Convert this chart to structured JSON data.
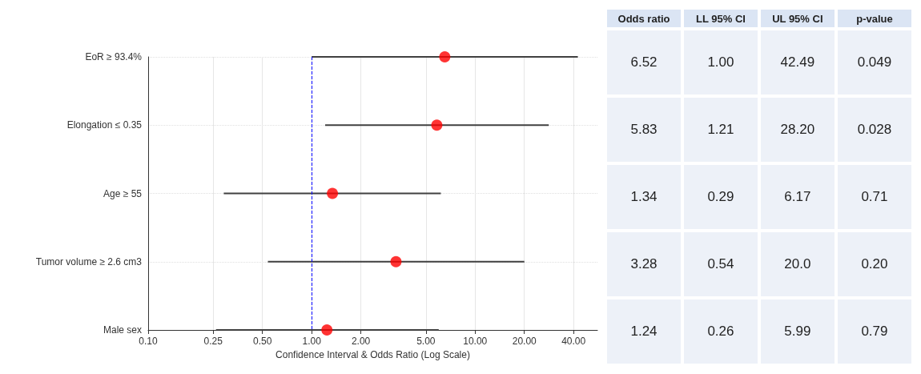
{
  "chart_data": [
    {
      "type": "scatter",
      "orientation": "horizontal",
      "xlabel": "Confidence Interval & Odds Ratio (Log Scale)",
      "categories": [
        "EoR ≥ 93.4%",
        "Elongation ≤ 0.35",
        "Age ≥ 55",
        "Tumor volume ≥ 2.6 cm3",
        "Male sex"
      ],
      "color": "#ff0000",
      "values": [
        6.52,
        5.83,
        1.34,
        3.28,
        1.24
      ],
      "errors": [
        [
          1.0,
          42.49
        ],
        [
          1.21,
          28.2
        ],
        [
          0.29,
          6.17
        ],
        [
          0.54,
          20.0
        ],
        [
          0.26,
          5.99
        ]
      ],
      "log": "x",
      "xlim": [
        0.1,
        56
      ],
      "xticks": [
        {
          "value": 0.1,
          "label": "0.10"
        },
        {
          "value": 0.25,
          "label": "0.25"
        },
        {
          "value": 0.5,
          "label": "0.50"
        },
        {
          "value": 1,
          "label": "1.00"
        },
        {
          "value": 2,
          "label": "2.00"
        },
        {
          "value": 5,
          "label": "5.00"
        },
        {
          "value": 10,
          "label": "10.00"
        },
        {
          "value": 20,
          "label": "20.00"
        },
        {
          "value": 40,
          "label": "40.00"
        }
      ],
      "ref_lines": [
        {
          "axis": "x",
          "value": 1,
          "color": "#0000ff",
          "line_style": "dashed"
        }
      ],
      "grid": true,
      "marker": "circle"
    },
    {
      "type": "other",
      "categories": [
        "Odds ratio",
        "LL 95% CI",
        "UL 95% CI",
        "p-value"
      ],
      "cell_labels": [
        [
          "6.52",
          "1.00",
          "42.49",
          "0.049"
        ],
        [
          "5.83",
          "1.21",
          "28.20",
          "0.028"
        ],
        [
          "1.34",
          "0.29",
          "6.17",
          "0.71"
        ],
        [
          "3.28",
          "0.54",
          "20.0",
          "0.20"
        ],
        [
          "1.24",
          "0.26",
          "5.99",
          "0.79"
        ]
      ]
    }
  ]
}
